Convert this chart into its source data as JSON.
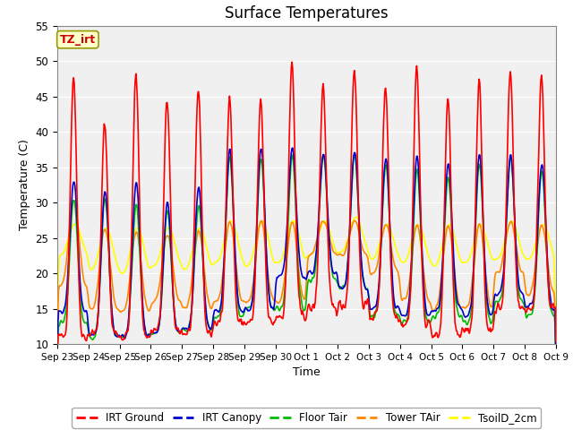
{
  "title": "Surface Temperatures",
  "xlabel": "Time",
  "ylabel": "Temperature (C)",
  "ylim": [
    10,
    55
  ],
  "yticks": [
    10,
    15,
    20,
    25,
    30,
    35,
    40,
    45,
    50,
    55
  ],
  "n_days": 16,
  "colors": {
    "IRT Ground": "#ff0000",
    "IRT Canopy": "#0000cc",
    "Floor Tair": "#00bb00",
    "Tower TAir": "#ff8800",
    "TsoilD_2cm": "#ffff00"
  },
  "tz_label": "TZ_irt",
  "background_color": "#ffffff",
  "plot_bg_color": "#f0f0f0",
  "grid_color": "#d8d8d8"
}
